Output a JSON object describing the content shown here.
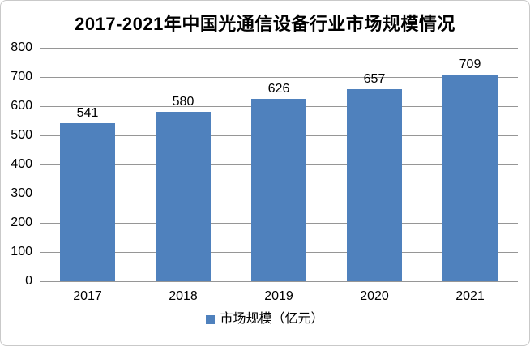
{
  "chart_data": {
    "type": "bar",
    "title": "2017-2021年中国光通信设备行业市场规模情况",
    "categories": [
      "2017",
      "2018",
      "2019",
      "2020",
      "2021"
    ],
    "values": [
      541,
      580,
      626,
      657,
      709
    ],
    "series_name": "市场规模（亿元）",
    "xlabel": "",
    "ylabel": "",
    "ylim": [
      0,
      800
    ],
    "ytick_interval": 100,
    "yticks": [
      0,
      100,
      200,
      300,
      400,
      500,
      600,
      700,
      800
    ],
    "grid": true,
    "data_labels": true,
    "legend_position": "bottom"
  },
  "colors": {
    "bar": "#4F81BD",
    "gridline": "#969696",
    "chart_border": "#c9c9c9",
    "text": "#000000",
    "background": "#ffffff"
  }
}
